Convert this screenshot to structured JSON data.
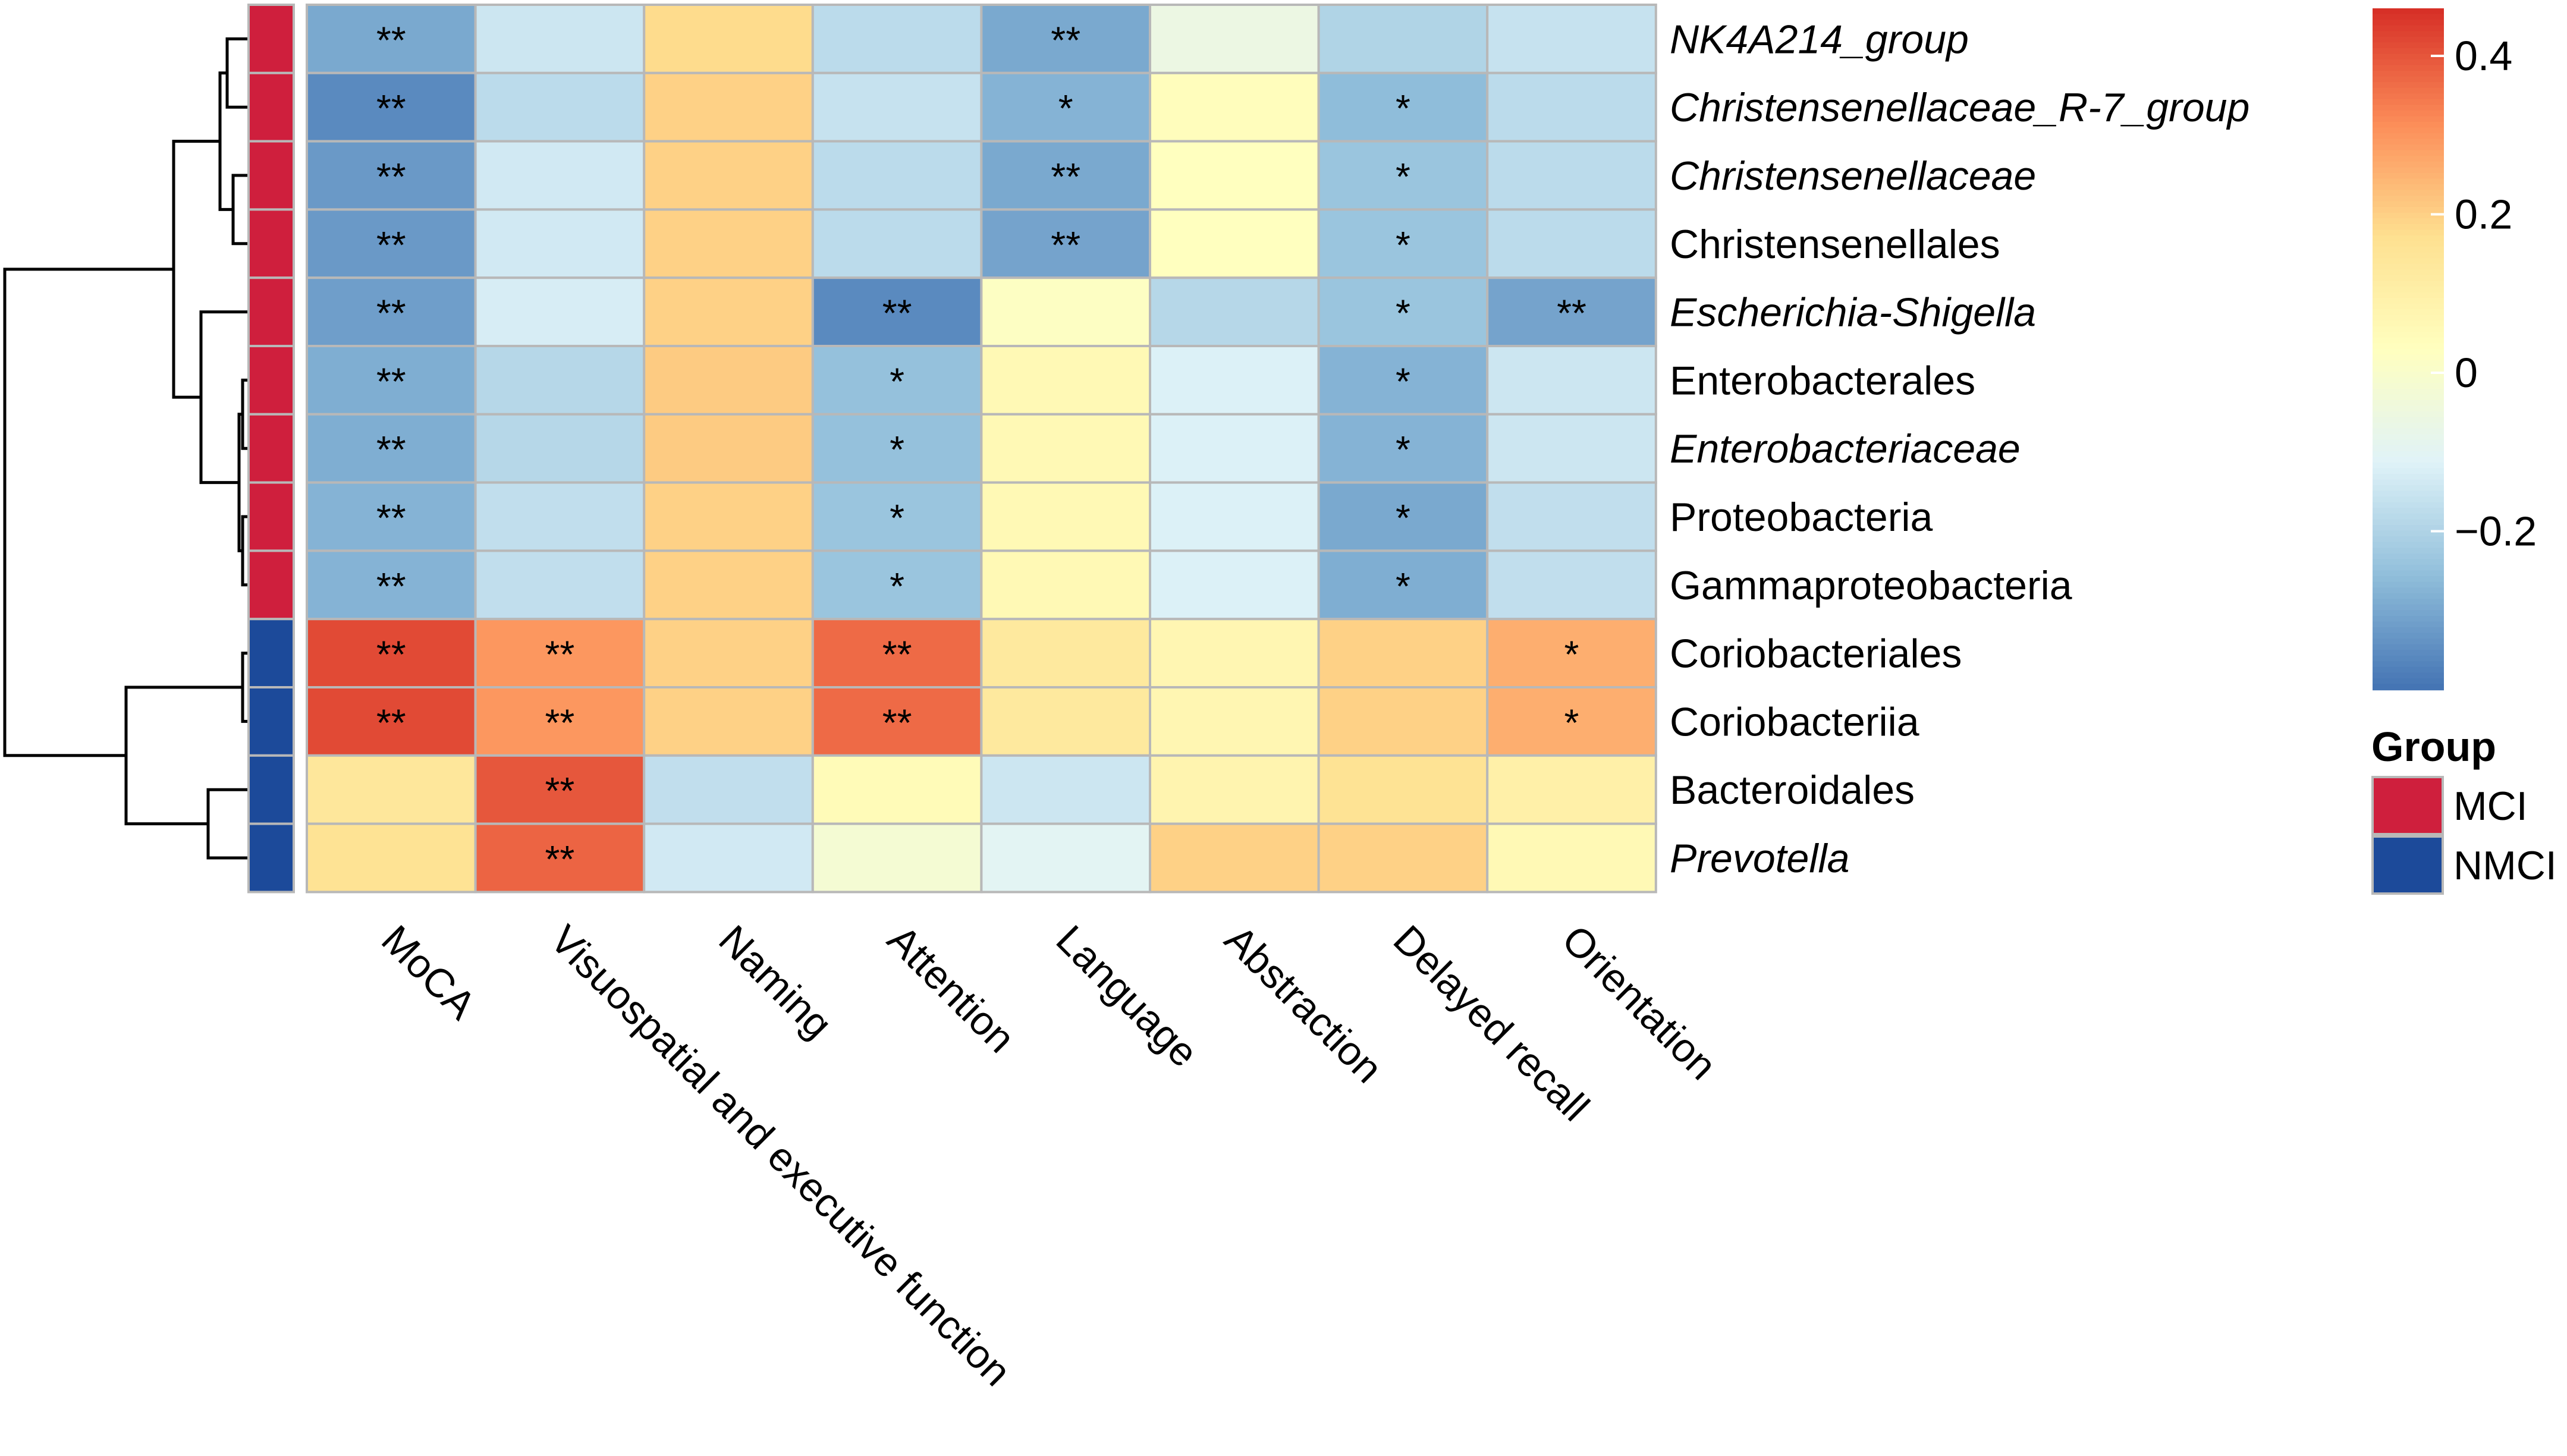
{
  "chart_data": {
    "type": "heatmap",
    "title": "",
    "columns": [
      "MoCA",
      "Visuospatial and executive function",
      "Naming",
      "Attention",
      "Language",
      "Abstraction",
      "Delayed recall",
      "Orientation"
    ],
    "rows": [
      {
        "label": "NK4A214_group",
        "italic": true,
        "group": "MCI",
        "values": [
          -0.3,
          -0.15,
          0.18,
          -0.18,
          -0.3,
          -0.06,
          -0.2,
          -0.16
        ],
        "marks": [
          "**",
          "",
          "",
          "",
          "**",
          "",
          "",
          ""
        ]
      },
      {
        "label": "Christensenellaceae_R-7_group",
        "italic": true,
        "group": "MCI",
        "values": [
          -0.36,
          -0.18,
          0.2,
          -0.16,
          -0.28,
          0.04,
          -0.26,
          -0.18
        ],
        "marks": [
          "**",
          "",
          "",
          "",
          "*",
          "",
          "*",
          ""
        ]
      },
      {
        "label": "Christensenellaceae",
        "italic": true,
        "group": "MCI",
        "values": [
          -0.33,
          -0.14,
          0.2,
          -0.18,
          -0.3,
          0.03,
          -0.24,
          -0.18
        ],
        "marks": [
          "**",
          "",
          "",
          "",
          "**",
          "",
          "*",
          ""
        ]
      },
      {
        "label": "Christensenellales",
        "italic": false,
        "group": "MCI",
        "values": [
          -0.33,
          -0.14,
          0.2,
          -0.18,
          -0.31,
          0.03,
          -0.24,
          -0.18
        ],
        "marks": [
          "**",
          "",
          "",
          "",
          "**",
          "",
          "*",
          ""
        ]
      },
      {
        "label": "Escherichia-Shigella",
        "italic": true,
        "group": "MCI",
        "values": [
          -0.32,
          -0.13,
          0.2,
          -0.36,
          0.02,
          -0.19,
          -0.24,
          -0.31
        ],
        "marks": [
          "**",
          "",
          "",
          "**",
          "",
          "",
          "*",
          "**"
        ]
      },
      {
        "label": "Enterobacterales",
        "italic": false,
        "group": "MCI",
        "values": [
          -0.29,
          -0.19,
          0.21,
          -0.25,
          0.06,
          -0.12,
          -0.28,
          -0.15
        ],
        "marks": [
          "**",
          "",
          "",
          "*",
          "",
          "",
          "*",
          ""
        ]
      },
      {
        "label": "Enterobacteriaceae",
        "italic": true,
        "group": "MCI",
        "values": [
          -0.29,
          -0.19,
          0.21,
          -0.25,
          0.06,
          -0.12,
          -0.28,
          -0.15
        ],
        "marks": [
          "**",
          "",
          "",
          "*",
          "",
          "",
          "*",
          ""
        ]
      },
      {
        "label": "Proteobacteria",
        "italic": false,
        "group": "MCI",
        "values": [
          -0.28,
          -0.17,
          0.2,
          -0.24,
          0.06,
          -0.12,
          -0.3,
          -0.17
        ],
        "marks": [
          "**",
          "",
          "",
          "*",
          "",
          "",
          "*",
          ""
        ]
      },
      {
        "label": "Gammaproteobacteria",
        "italic": false,
        "group": "MCI",
        "values": [
          -0.28,
          -0.17,
          0.2,
          -0.24,
          0.06,
          -0.12,
          -0.29,
          -0.17
        ],
        "marks": [
          "**",
          "",
          "",
          "*",
          "",
          "",
          "*",
          ""
        ]
      },
      {
        "label": "Coriobacteriales",
        "italic": false,
        "group": "NMCI",
        "values": [
          0.42,
          0.3,
          0.2,
          0.37,
          0.13,
          0.07,
          0.2,
          0.26
        ],
        "marks": [
          "**",
          "**",
          "",
          "**",
          "",
          "",
          "",
          "*"
        ]
      },
      {
        "label": "Coriobacteriia",
        "italic": false,
        "group": "NMCI",
        "values": [
          0.42,
          0.3,
          0.2,
          0.37,
          0.13,
          0.07,
          0.2,
          0.26
        ],
        "marks": [
          "**",
          "**",
          "",
          "**",
          "",
          "",
          "",
          "*"
        ]
      },
      {
        "label": "Bacteroidales",
        "italic": false,
        "group": "NMCI",
        "values": [
          0.14,
          0.4,
          -0.17,
          0.05,
          -0.15,
          0.08,
          0.16,
          0.1
        ],
        "marks": [
          "",
          "**",
          "",
          "",
          "",
          "",
          "",
          ""
        ]
      },
      {
        "label": "Prevotella",
        "italic": true,
        "group": "NMCI",
        "values": [
          0.16,
          0.38,
          -0.14,
          -0.02,
          -0.1,
          0.2,
          0.2,
          0.06
        ],
        "marks": [
          "",
          "**",
          "",
          "",
          "",
          "",
          "",
          ""
        ]
      }
    ],
    "color_scale": {
      "min": -0.4,
      "max": 0.46,
      "ticks": [
        {
          "value": 0.4,
          "label": "0.4"
        },
        {
          "value": 0.2,
          "label": "0.2"
        },
        {
          "value": 0,
          "label": "0"
        },
        {
          "value": -0.2,
          "label": "−0.2"
        }
      ],
      "stops": [
        "#4575b4",
        "#91bfdb",
        "#e0f3f8",
        "#ffffbf",
        "#fee090",
        "#fc8d59",
        "#d73027"
      ]
    },
    "legend": {
      "title": "Group",
      "entries": [
        {
          "label": "MCI",
          "color": "#cf1f3d"
        },
        {
          "label": "NMCI",
          "color": "#1c4a9a"
        }
      ]
    },
    "row_dendrogram": "left",
    "cell_border_color": "#b8b8b8"
  }
}
